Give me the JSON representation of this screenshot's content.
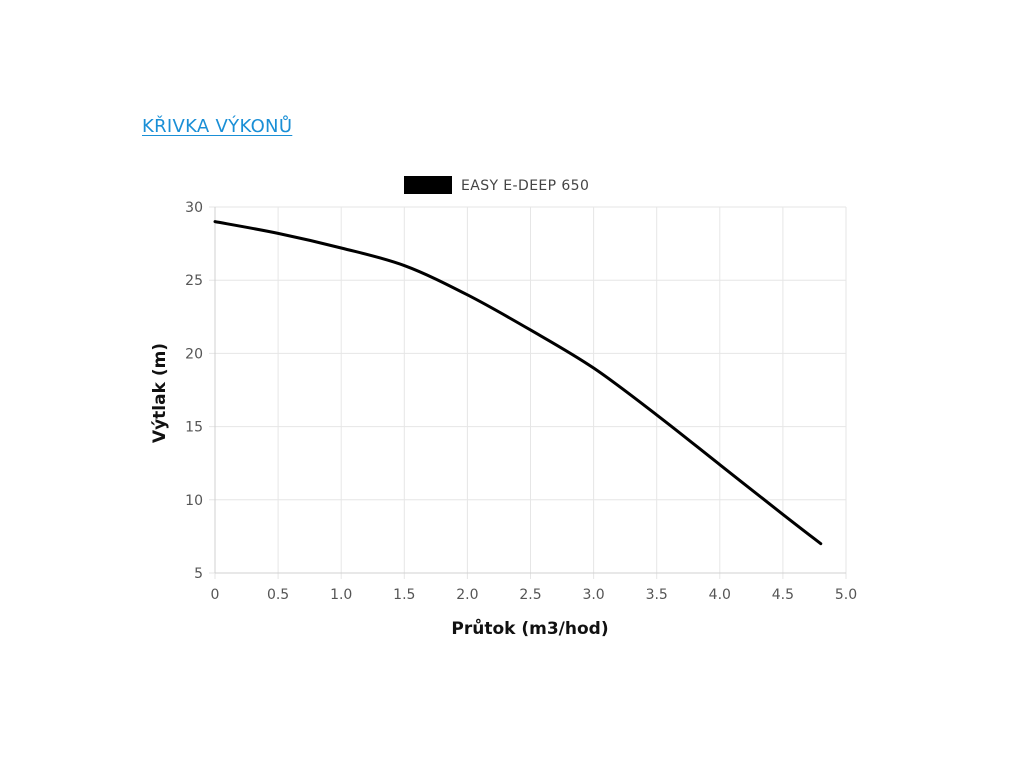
{
  "header": {
    "link_label": "KŘIVKA VÝKONŮ",
    "link_color": "#1a8fd6"
  },
  "chart_data": {
    "type": "line",
    "xlabel": "Průtok (m3/hod)",
    "ylabel": "Výtlak (m)",
    "xlim": [
      0,
      5.0
    ],
    "ylim": [
      5,
      30
    ],
    "x_ticks": [
      "0",
      "0.5",
      "1.0",
      "1.5",
      "2.0",
      "2.5",
      "3.0",
      "3.5",
      "4.0",
      "4.5",
      "5.0"
    ],
    "y_ticks": [
      "5",
      "10",
      "15",
      "20",
      "25",
      "30"
    ],
    "grid": true,
    "legend_position": "top-center",
    "series": [
      {
        "name": "EASY E-DEEP 650",
        "color": "#000000",
        "x": [
          0,
          0.5,
          1.0,
          1.5,
          2.0,
          2.5,
          3.0,
          3.5,
          4.0,
          4.5,
          4.8
        ],
        "y": [
          29.0,
          28.2,
          27.2,
          26.0,
          24.0,
          21.6,
          19.0,
          15.8,
          12.4,
          9.0,
          7.0
        ]
      }
    ]
  }
}
